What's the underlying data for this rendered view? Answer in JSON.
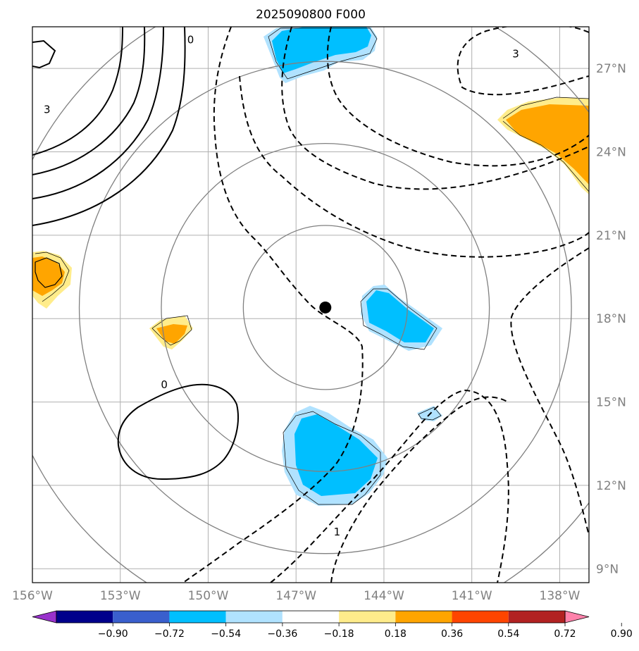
{
  "title": "2025090800 F000",
  "map": {
    "lon_range": [
      -156,
      -137
    ],
    "lat_range": [
      8.5,
      28.5
    ],
    "lon_ticks": [
      {
        "value": -156,
        "label": "156°W"
      },
      {
        "value": -153,
        "label": "153°W"
      },
      {
        "value": -150,
        "label": "150°W"
      },
      {
        "value": -147,
        "label": "147°W"
      },
      {
        "value": -144,
        "label": "144°W"
      },
      {
        "value": -141,
        "label": "141°W"
      },
      {
        "value": -138,
        "label": "138°W"
      }
    ],
    "lat_ticks": [
      {
        "value": 27,
        "label": "27°N"
      },
      {
        "value": 24,
        "label": "24°N"
      },
      {
        "value": 21,
        "label": "21°N"
      },
      {
        "value": 18,
        "label": "18°N"
      },
      {
        "value": 15,
        "label": "15°N"
      },
      {
        "value": 12,
        "label": "12°N"
      },
      {
        "value": 9,
        "label": "9°N"
      }
    ],
    "center": {
      "lon": -146.0,
      "lat": 18.4
    },
    "range_rings_deg": [
      2.8,
      5.6,
      8.4,
      11.2
    ],
    "contour_labels": [
      {
        "text": "0",
        "lon": -150.6,
        "lat": 28.0
      },
      {
        "text": "3",
        "lon": -155.5,
        "lat": 25.5
      },
      {
        "text": "3",
        "lon": -139.5,
        "lat": 27.5
      },
      {
        "text": "0",
        "lon": -151.5,
        "lat": 15.6
      },
      {
        "text": "1",
        "lon": -145.6,
        "lat": 10.3
      }
    ]
  },
  "colorbar": {
    "colors": [
      "#9932CC",
      "#00008B",
      "#3A5FCD",
      "#00BFFF",
      "#B0E2FF",
      "#FFFFFF",
      "#FFEC8B",
      "#FFA500",
      "#FF4500",
      "#B22222",
      "#FF82AB"
    ],
    "tick_labels": [
      "−0.90",
      "−0.72",
      "−0.54",
      "−0.36",
      "−0.18",
      "0.18",
      "0.36",
      "0.54",
      "0.72",
      "0.90"
    ]
  },
  "shading_colors": {
    "pale_blue": "#B0E2FF",
    "blue": "#00BFFF",
    "pale_yellow": "#FFEC8B",
    "orange": "#FFA500"
  }
}
